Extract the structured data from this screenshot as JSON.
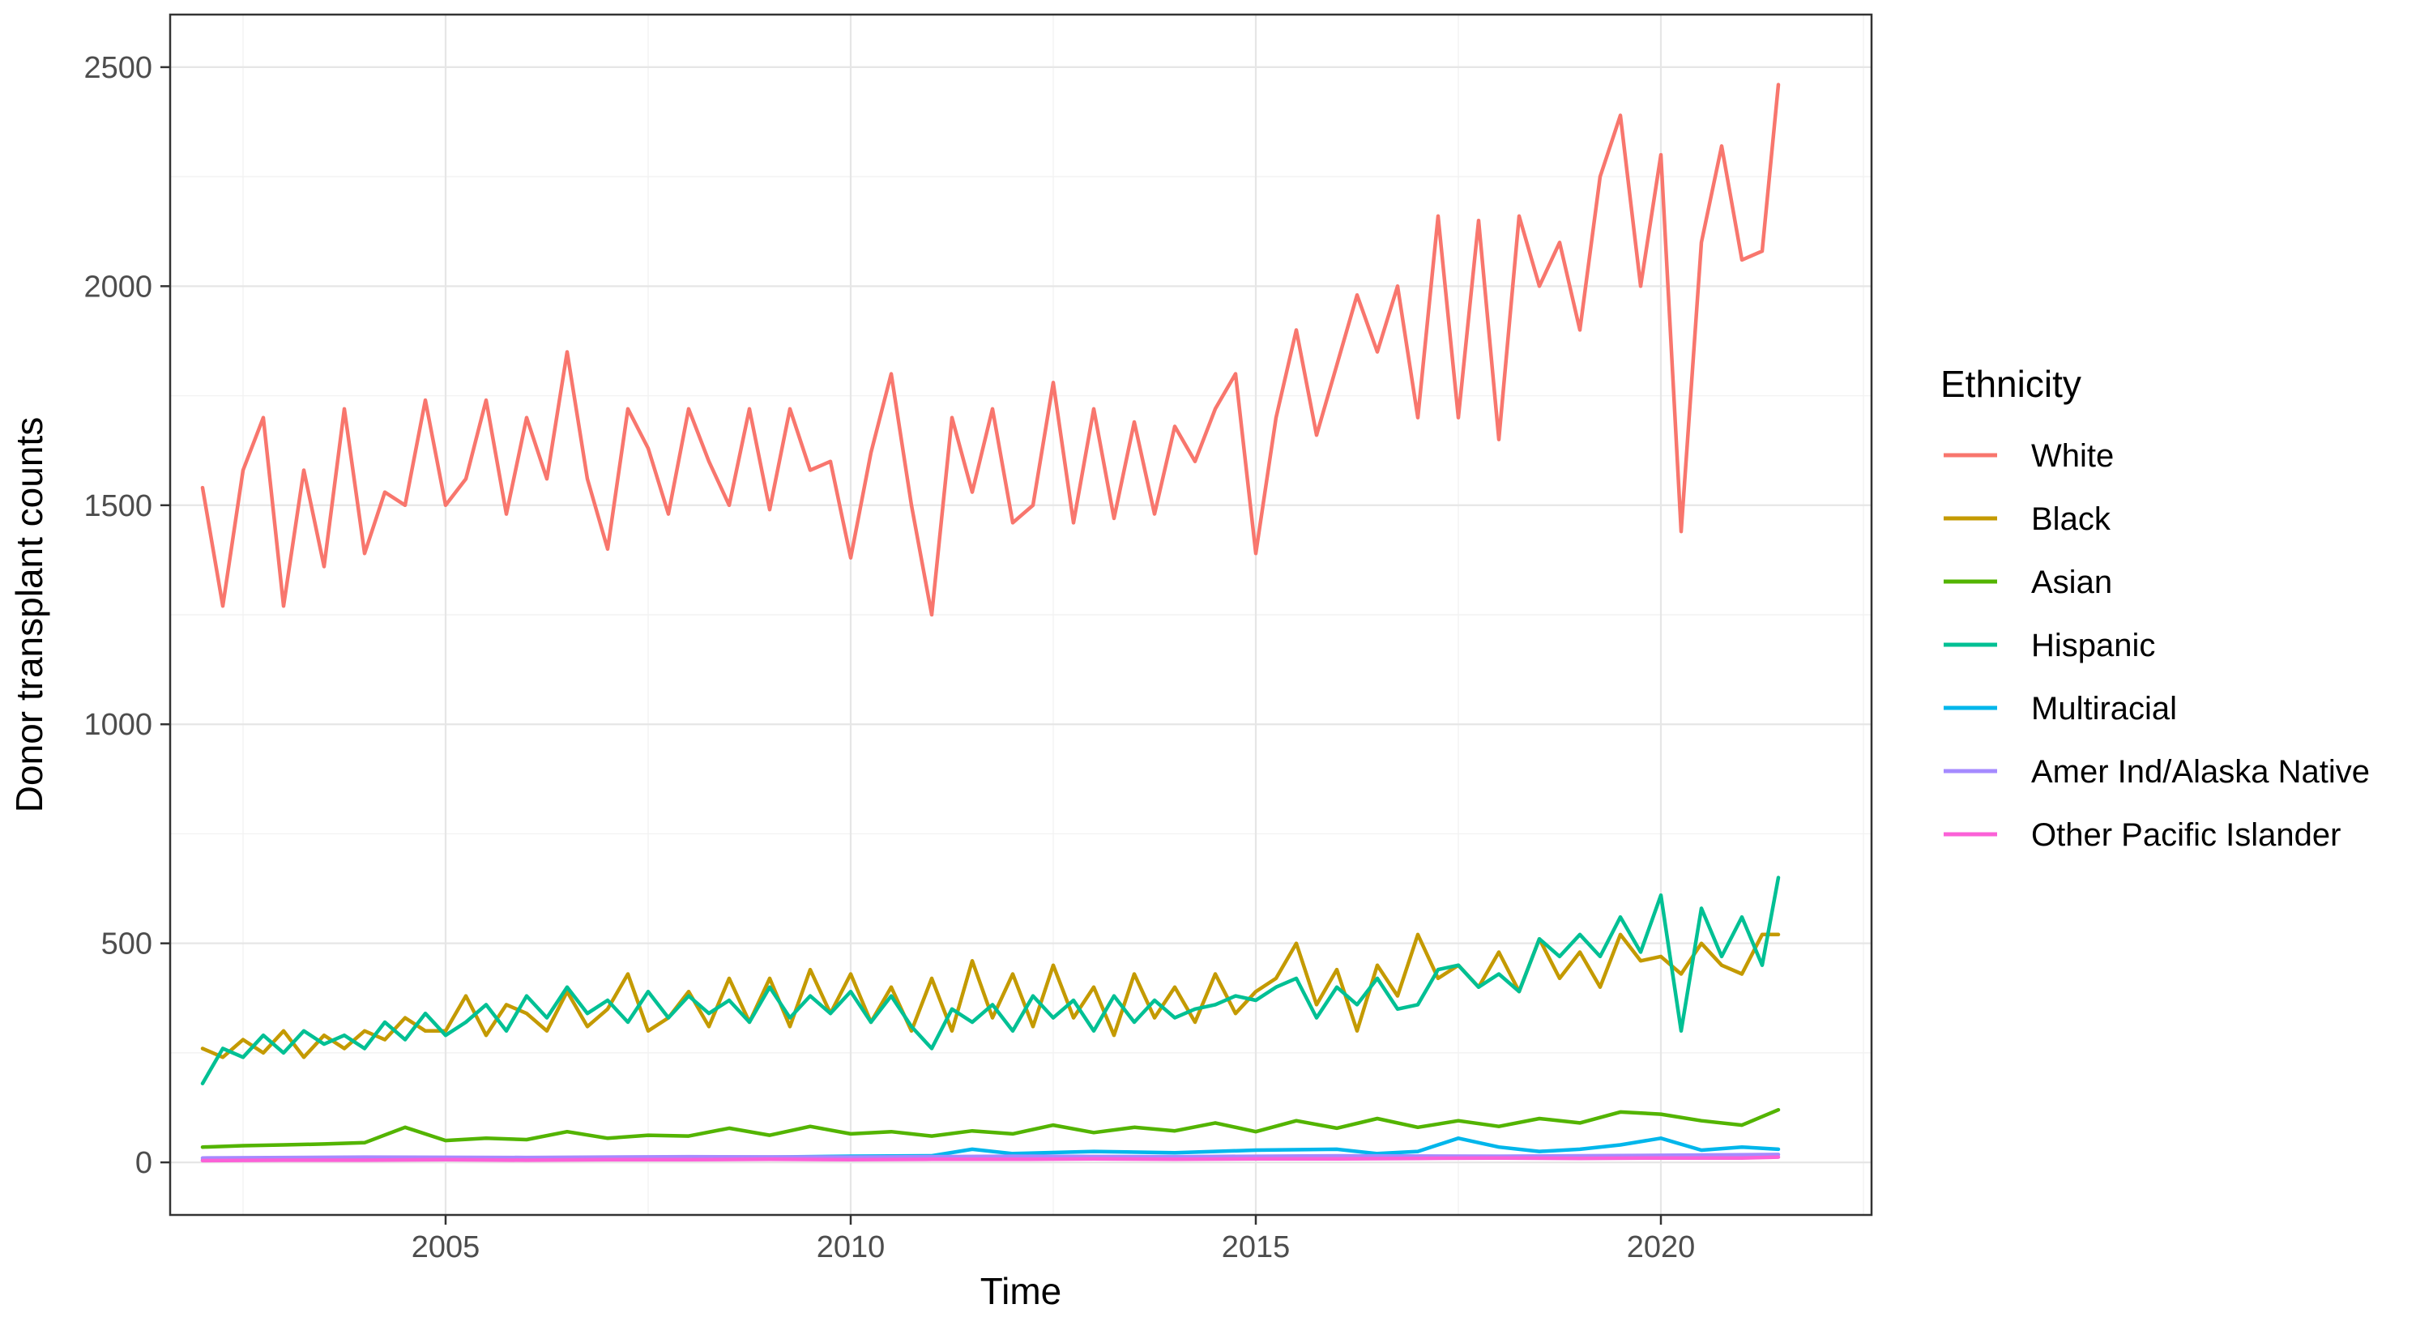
{
  "chart_data": {
    "type": "line",
    "title": "",
    "xlabel": "Time",
    "ylabel": "Donor transplant counts",
    "xlim": [
      2001.6,
      2022.6
    ],
    "ylim": [
      -120,
      2620
    ],
    "x_ticks": [
      2005,
      2010,
      2015,
      2020
    ],
    "x_tick_labels": [
      "2005",
      "2010",
      "2015",
      "2020"
    ],
    "y_ticks": [
      0,
      500,
      1000,
      1500,
      2000,
      2500
    ],
    "y_tick_labels": [
      "0",
      "500",
      "1000",
      "1500",
      "2000",
      "2500"
    ],
    "grid": true,
    "legend": {
      "title": "Ethnicity",
      "position": "right"
    },
    "series": [
      {
        "name": "White",
        "color": "#F8766D",
        "x": [
          2002.0,
          2002.25,
          2002.5,
          2002.75,
          2003.0,
          2003.25,
          2003.5,
          2003.75,
          2004.0,
          2004.25,
          2004.5,
          2004.75,
          2005.0,
          2005.25,
          2005.5,
          2005.75,
          2006.0,
          2006.25,
          2006.5,
          2006.75,
          2007.0,
          2007.25,
          2007.5,
          2007.75,
          2008.0,
          2008.25,
          2008.5,
          2008.75,
          2009.0,
          2009.25,
          2009.5,
          2009.75,
          2010.0,
          2010.25,
          2010.5,
          2010.75,
          2011.0,
          2011.25,
          2011.5,
          2011.75,
          2012.0,
          2012.25,
          2012.5,
          2012.75,
          2013.0,
          2013.25,
          2013.5,
          2013.75,
          2014.0,
          2014.25,
          2014.5,
          2014.75,
          2015.0,
          2015.25,
          2015.5,
          2015.75,
          2016.0,
          2016.25,
          2016.5,
          2016.75,
          2017.0,
          2017.25,
          2017.5,
          2017.75,
          2018.0,
          2018.25,
          2018.5,
          2018.75,
          2019.0,
          2019.25,
          2019.5,
          2019.75,
          2020.0,
          2020.25,
          2020.5,
          2020.75,
          2021.0,
          2021.25,
          2021.45
        ],
        "values": [
          1540,
          1270,
          1580,
          1700,
          1270,
          1580,
          1360,
          1720,
          1390,
          1530,
          1500,
          1740,
          1500,
          1560,
          1740,
          1480,
          1700,
          1560,
          1850,
          1560,
          1400,
          1720,
          1630,
          1480,
          1720,
          1600,
          1500,
          1720,
          1490,
          1720,
          1580,
          1600,
          1380,
          1620,
          1800,
          1500,
          1250,
          1700,
          1530,
          1720,
          1460,
          1500,
          1780,
          1460,
          1720,
          1470,
          1690,
          1480,
          1680,
          1600,
          1720,
          1800,
          1390,
          1700,
          1900,
          1660,
          1820,
          1980,
          1850,
          2000,
          1700,
          2160,
          1700,
          2150,
          1650,
          2160,
          2000,
          2100,
          1900,
          2250,
          2390,
          2000,
          2300,
          1440,
          2100,
          2320,
          2060,
          2080,
          2460
        ]
      },
      {
        "name": "Black",
        "color": "#C49A00",
        "x": [
          2002.0,
          2002.25,
          2002.5,
          2002.75,
          2003.0,
          2003.25,
          2003.5,
          2003.75,
          2004.0,
          2004.25,
          2004.5,
          2004.75,
          2005.0,
          2005.25,
          2005.5,
          2005.75,
          2006.0,
          2006.25,
          2006.5,
          2006.75,
          2007.0,
          2007.25,
          2007.5,
          2007.75,
          2008.0,
          2008.25,
          2008.5,
          2008.75,
          2009.0,
          2009.25,
          2009.5,
          2009.75,
          2010.0,
          2010.25,
          2010.5,
          2010.75,
          2011.0,
          2011.25,
          2011.5,
          2011.75,
          2012.0,
          2012.25,
          2012.5,
          2012.75,
          2013.0,
          2013.25,
          2013.5,
          2013.75,
          2014.0,
          2014.25,
          2014.5,
          2014.75,
          2015.0,
          2015.25,
          2015.5,
          2015.75,
          2016.0,
          2016.25,
          2016.5,
          2016.75,
          2017.0,
          2017.25,
          2017.5,
          2017.75,
          2018.0,
          2018.25,
          2018.5,
          2018.75,
          2019.0,
          2019.25,
          2019.5,
          2019.75,
          2020.0,
          2020.25,
          2020.5,
          2020.75,
          2021.0,
          2021.25,
          2021.45
        ],
        "values": [
          260,
          240,
          280,
          250,
          300,
          240,
          290,
          260,
          300,
          280,
          330,
          300,
          300,
          380,
          290,
          360,
          340,
          300,
          390,
          310,
          350,
          430,
          300,
          330,
          390,
          310,
          420,
          320,
          420,
          310,
          440,
          340,
          430,
          320,
          400,
          300,
          420,
          300,
          460,
          330,
          430,
          310,
          450,
          330,
          400,
          290,
          430,
          330,
          400,
          320,
          430,
          340,
          390,
          420,
          500,
          360,
          440,
          300,
          450,
          380,
          520,
          420,
          450,
          400,
          480,
          390,
          510,
          420,
          480,
          400,
          520,
          460,
          470,
          430,
          500,
          450,
          430,
          520,
          520
        ]
      },
      {
        "name": "Asian",
        "color": "#53B400",
        "x": [
          2002.0,
          2002.5,
          2003.0,
          2003.5,
          2004.0,
          2004.5,
          2005.0,
          2005.5,
          2006.0,
          2006.5,
          2007.0,
          2007.5,
          2008.0,
          2008.5,
          2009.0,
          2009.5,
          2010.0,
          2010.5,
          2011.0,
          2011.5,
          2012.0,
          2012.5,
          2013.0,
          2013.5,
          2014.0,
          2014.5,
          2015.0,
          2015.5,
          2016.0,
          2016.5,
          2017.0,
          2017.5,
          2018.0,
          2018.5,
          2019.0,
          2019.5,
          2020.0,
          2020.5,
          2021.0,
          2021.45
        ],
        "values": [
          35,
          38,
          40,
          42,
          45,
          80,
          50,
          55,
          52,
          70,
          55,
          62,
          60,
          78,
          62,
          82,
          65,
          70,
          60,
          72,
          65,
          85,
          68,
          80,
          72,
          90,
          70,
          95,
          78,
          100,
          80,
          95,
          82,
          100,
          90,
          115,
          110,
          95,
          85,
          120
        ]
      },
      {
        "name": "Hispanic",
        "color": "#00C094",
        "x": [
          2002.0,
          2002.25,
          2002.5,
          2002.75,
          2003.0,
          2003.25,
          2003.5,
          2003.75,
          2004.0,
          2004.25,
          2004.5,
          2004.75,
          2005.0,
          2005.25,
          2005.5,
          2005.75,
          2006.0,
          2006.25,
          2006.5,
          2006.75,
          2007.0,
          2007.25,
          2007.5,
          2007.75,
          2008.0,
          2008.25,
          2008.5,
          2008.75,
          2009.0,
          2009.25,
          2009.5,
          2009.75,
          2010.0,
          2010.25,
          2010.5,
          2010.75,
          2011.0,
          2011.25,
          2011.5,
          2011.75,
          2012.0,
          2012.25,
          2012.5,
          2012.75,
          2013.0,
          2013.25,
          2013.5,
          2013.75,
          2014.0,
          2014.25,
          2014.5,
          2014.75,
          2015.0,
          2015.25,
          2015.5,
          2015.75,
          2016.0,
          2016.25,
          2016.5,
          2016.75,
          2017.0,
          2017.25,
          2017.5,
          2017.75,
          2018.0,
          2018.25,
          2018.5,
          2018.75,
          2019.0,
          2019.25,
          2019.5,
          2019.75,
          2020.0,
          2020.25,
          2020.5,
          2020.75,
          2021.0,
          2021.25,
          2021.45
        ],
        "values": [
          180,
          260,
          240,
          290,
          250,
          300,
          270,
          290,
          260,
          320,
          280,
          340,
          290,
          320,
          360,
          300,
          380,
          330,
          400,
          340,
          370,
          320,
          390,
          330,
          380,
          340,
          370,
          320,
          400,
          330,
          380,
          340,
          390,
          320,
          380,
          310,
          260,
          350,
          320,
          360,
          300,
          380,
          330,
          370,
          300,
          380,
          320,
          370,
          330,
          350,
          360,
          380,
          370,
          400,
          420,
          330,
          400,
          360,
          420,
          350,
          360,
          440,
          450,
          400,
          430,
          390,
          510,
          470,
          520,
          470,
          560,
          480,
          610,
          300,
          580,
          470,
          560,
          450,
          650
        ]
      },
      {
        "name": "Multiracial",
        "color": "#00B6EB",
        "x": [
          2002.0,
          2003.0,
          2004.0,
          2005.0,
          2006.0,
          2007.0,
          2008.0,
          2009.0,
          2010.0,
          2011.0,
          2011.5,
          2012.0,
          2013.0,
          2014.0,
          2015.0,
          2016.0,
          2016.5,
          2017.0,
          2017.5,
          2018.0,
          2018.5,
          2019.0,
          2019.5,
          2020.0,
          2020.5,
          2021.0,
          2021.45
        ],
        "values": [
          5,
          6,
          8,
          8,
          10,
          10,
          12,
          12,
          14,
          15,
          30,
          20,
          25,
          22,
          28,
          30,
          20,
          25,
          55,
          35,
          25,
          30,
          40,
          55,
          28,
          35,
          30
        ]
      },
      {
        "name": "Amer Ind/Alaska Native",
        "color": "#A58AFF",
        "x": [
          2002.0,
          2004.0,
          2006.0,
          2008.0,
          2010.0,
          2012.0,
          2014.0,
          2016.0,
          2018.0,
          2020.0,
          2021.45
        ],
        "values": [
          10,
          12,
          11,
          13,
          12,
          14,
          13,
          15,
          14,
          16,
          18
        ]
      },
      {
        "name": "Other Pacific Islander",
        "color": "#FB61D7",
        "x": [
          2002.0,
          2003.0,
          2004.0,
          2005.0,
          2006.0,
          2007.0,
          2008.0,
          2009.0,
          2010.0,
          2011.0,
          2012.0,
          2013.0,
          2014.0,
          2015.0,
          2016.0,
          2017.0,
          2018.0,
          2019.0,
          2020.0,
          2021.0,
          2021.45
        ],
        "values": [
          4,
          5,
          5,
          6,
          5,
          6,
          6,
          7,
          6,
          7,
          7,
          8,
          7,
          8,
          8,
          9,
          10,
          9,
          10,
          10,
          12
        ]
      }
    ]
  }
}
